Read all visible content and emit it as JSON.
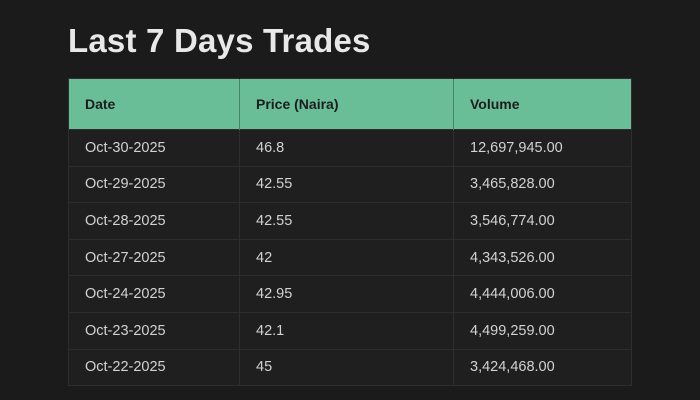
{
  "page": {
    "title": "Last 7 Days Trades"
  },
  "colors": {
    "page_bg": "#1b1b1b",
    "title_text": "#e8e8e8",
    "header_bg": "#69be98",
    "header_text": "#1d1d1d",
    "row_bg": "#1f1f1f",
    "body_text": "#d2d2d2",
    "border": "#2e2e2e"
  },
  "table": {
    "columns": [
      "Date",
      "Price (Naira)",
      "Volume"
    ],
    "rows": [
      {
        "date": "Oct-30-2025",
        "price": "46.8",
        "volume": "12,697,945.00"
      },
      {
        "date": "Oct-29-2025",
        "price": "42.55",
        "volume": "3,465,828.00"
      },
      {
        "date": "Oct-28-2025",
        "price": "42.55",
        "volume": "3,546,774.00"
      },
      {
        "date": "Oct-27-2025",
        "price": "42",
        "volume": "4,343,526.00"
      },
      {
        "date": "Oct-24-2025",
        "price": "42.95",
        "volume": "4,444,006.00"
      },
      {
        "date": "Oct-23-2025",
        "price": "42.1",
        "volume": "4,499,259.00"
      },
      {
        "date": "Oct-22-2025",
        "price": "45",
        "volume": "3,424,468.00"
      }
    ]
  }
}
